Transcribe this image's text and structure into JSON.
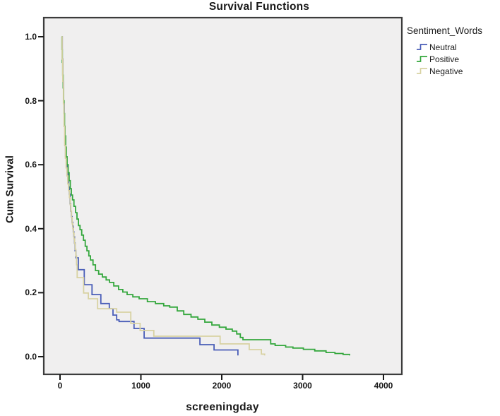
{
  "chart_data": {
    "type": "line",
    "subtype": "step-survival",
    "title": "Survival Functions",
    "xlabel": "screeningday",
    "ylabel": "Cum Survival",
    "xlim": [
      -200,
      4240
    ],
    "ylim": [
      -0.055,
      1.06
    ],
    "grid": false,
    "plot_background": "#f0efef",
    "frame_color": "#3c3c3c",
    "tick_color": "#1a1a1a",
    "x_ticks": [
      {
        "value": 0,
        "label": "0"
      },
      {
        "value": 1000,
        "label": "1000"
      },
      {
        "value": 2000,
        "label": "2000"
      },
      {
        "value": 3000,
        "label": "3000"
      },
      {
        "value": 4000,
        "label": "4000"
      }
    ],
    "y_ticks": [
      {
        "value": 0.0,
        "label": "0.0"
      },
      {
        "value": 0.2,
        "label": "0.2"
      },
      {
        "value": 0.4,
        "label": "0.4"
      },
      {
        "value": 0.6,
        "label": "0.6"
      },
      {
        "value": 0.8,
        "label": "0.8"
      },
      {
        "value": 1.0,
        "label": "1.0"
      }
    ],
    "legend": {
      "title": "Sentiment_Words",
      "position": "top-right-outside"
    },
    "series": [
      {
        "name": "Neutral",
        "color": "#4a5eb8",
        "points": [
          [
            18,
            1.0
          ],
          [
            28,
            0.93
          ],
          [
            36,
            0.86
          ],
          [
            44,
            0.79
          ],
          [
            52,
            0.72
          ],
          [
            60,
            0.66
          ],
          [
            68,
            0.625
          ],
          [
            78,
            0.6
          ],
          [
            88,
            0.575
          ],
          [
            97,
            0.553
          ],
          [
            106,
            0.53
          ],
          [
            115,
            0.508
          ],
          [
            124,
            0.478
          ],
          [
            132,
            0.455
          ],
          [
            141,
            0.438
          ],
          [
            149,
            0.42
          ],
          [
            156,
            0.408
          ],
          [
            164,
            0.39
          ],
          [
            171,
            0.375
          ],
          [
            179,
            0.355
          ],
          [
            186,
            0.331
          ],
          [
            196,
            0.309
          ],
          [
            226,
            0.272
          ],
          [
            300,
            0.225
          ],
          [
            396,
            0.194
          ],
          [
            505,
            0.166
          ],
          [
            610,
            0.15
          ],
          [
            655,
            0.13
          ],
          [
            700,
            0.115
          ],
          [
            730,
            0.11
          ],
          [
            915,
            0.088
          ],
          [
            1040,
            0.058
          ],
          [
            1730,
            0.0375
          ],
          [
            1905,
            0.021
          ],
          [
            2200,
            0.004
          ]
        ]
      },
      {
        "name": "Positive",
        "color": "#34a73d",
        "points": [
          [
            18,
            1.0
          ],
          [
            24,
            0.96
          ],
          [
            28,
            0.92
          ],
          [
            33,
            0.88
          ],
          [
            38,
            0.84
          ],
          [
            44,
            0.8
          ],
          [
            50,
            0.76
          ],
          [
            56,
            0.72
          ],
          [
            62,
            0.69
          ],
          [
            70,
            0.655
          ],
          [
            78,
            0.625
          ],
          [
            87,
            0.6
          ],
          [
            100,
            0.575
          ],
          [
            113,
            0.55
          ],
          [
            127,
            0.525
          ],
          [
            140,
            0.505
          ],
          [
            155,
            0.49
          ],
          [
            172,
            0.47
          ],
          [
            192,
            0.45
          ],
          [
            210,
            0.43
          ],
          [
            228,
            0.41
          ],
          [
            247,
            0.397
          ],
          [
            268,
            0.38
          ],
          [
            290,
            0.364
          ],
          [
            312,
            0.345
          ],
          [
            333,
            0.331
          ],
          [
            356,
            0.315
          ],
          [
            376,
            0.302
          ],
          [
            408,
            0.287
          ],
          [
            438,
            0.269
          ],
          [
            478,
            0.258
          ],
          [
            524,
            0.249
          ],
          [
            570,
            0.24
          ],
          [
            612,
            0.232
          ],
          [
            665,
            0.221
          ],
          [
            724,
            0.21
          ],
          [
            776,
            0.202
          ],
          [
            830,
            0.194
          ],
          [
            900,
            0.187
          ],
          [
            978,
            0.181
          ],
          [
            1080,
            0.172
          ],
          [
            1180,
            0.166
          ],
          [
            1282,
            0.159
          ],
          [
            1356,
            0.155
          ],
          [
            1450,
            0.143
          ],
          [
            1530,
            0.132
          ],
          [
            1620,
            0.124
          ],
          [
            1705,
            0.117
          ],
          [
            1790,
            0.108
          ],
          [
            1878,
            0.099
          ],
          [
            1970,
            0.092
          ],
          [
            2052,
            0.086
          ],
          [
            2130,
            0.08
          ],
          [
            2185,
            0.071
          ],
          [
            2230,
            0.06
          ],
          [
            2262,
            0.053
          ],
          [
            2605,
            0.04
          ],
          [
            2660,
            0.035
          ],
          [
            2790,
            0.03
          ],
          [
            2880,
            0.027
          ],
          [
            3010,
            0.023
          ],
          [
            3150,
            0.018
          ],
          [
            3290,
            0.013
          ],
          [
            3400,
            0.01
          ],
          [
            3500,
            0.007
          ],
          [
            3580,
            0.004
          ]
        ]
      },
      {
        "name": "Negative",
        "color": "#d8d2a2",
        "points": [
          [
            18,
            1.0
          ],
          [
            26,
            0.93
          ],
          [
            34,
            0.86
          ],
          [
            42,
            0.79
          ],
          [
            50,
            0.72
          ],
          [
            58,
            0.66
          ],
          [
            66,
            0.62
          ],
          [
            76,
            0.59
          ],
          [
            86,
            0.565
          ],
          [
            96,
            0.54
          ],
          [
            106,
            0.519
          ],
          [
            116,
            0.497
          ],
          [
            126,
            0.475
          ],
          [
            134,
            0.455
          ],
          [
            142,
            0.435
          ],
          [
            150,
            0.415
          ],
          [
            158,
            0.4
          ],
          [
            166,
            0.386
          ],
          [
            173,
            0.368
          ],
          [
            181,
            0.353
          ],
          [
            188,
            0.335
          ],
          [
            196,
            0.315
          ],
          [
            204,
            0.287
          ],
          [
            212,
            0.247
          ],
          [
            292,
            0.199
          ],
          [
            350,
            0.181
          ],
          [
            465,
            0.15
          ],
          [
            700,
            0.139
          ],
          [
            875,
            0.104
          ],
          [
            990,
            0.082
          ],
          [
            1160,
            0.064
          ],
          [
            1980,
            0.04
          ],
          [
            2340,
            0.022
          ],
          [
            2490,
            0.008
          ],
          [
            2530,
            0.004
          ]
        ]
      }
    ]
  }
}
